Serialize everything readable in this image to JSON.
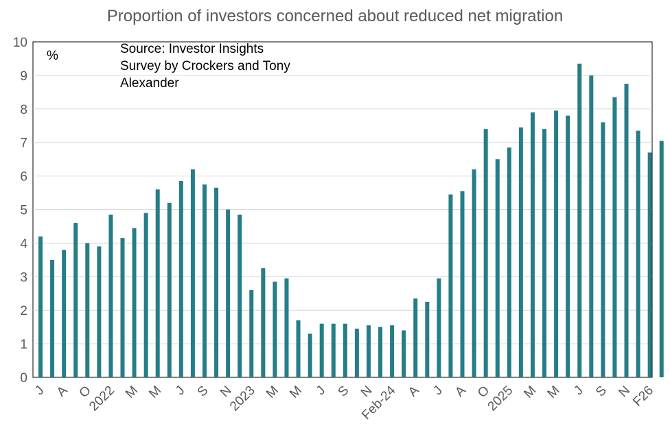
{
  "chart_data": {
    "type": "bar",
    "title": "Proportion of investors concerned about reduced net migration",
    "unit_label": "%",
    "source_lines": [
      "Source: Investor Insights",
      "Survey by Crockers and Tony",
      "Alexander"
    ],
    "ylim": [
      0,
      10
    ],
    "yticks": [
      0,
      1,
      2,
      3,
      4,
      5,
      6,
      7,
      8,
      9,
      10
    ],
    "grid": true,
    "legend": "none",
    "bar_color": "#257d87",
    "grid_color": "#d9d9d9",
    "x_tick_labels": [
      {
        "index": 0,
        "label": "J"
      },
      {
        "index": 2,
        "label": "A"
      },
      {
        "index": 4,
        "label": "O"
      },
      {
        "index": 6,
        "label": "2022"
      },
      {
        "index": 8,
        "label": "M"
      },
      {
        "index": 10,
        "label": "M"
      },
      {
        "index": 12,
        "label": "J"
      },
      {
        "index": 14,
        "label": "S"
      },
      {
        "index": 16,
        "label": "N"
      },
      {
        "index": 18,
        "label": "2023"
      },
      {
        "index": 20,
        "label": "M"
      },
      {
        "index": 22,
        "label": "M"
      },
      {
        "index": 24,
        "label": "J"
      },
      {
        "index": 26,
        "label": "S"
      },
      {
        "index": 28,
        "label": "N"
      },
      {
        "index": 30,
        "label": "Feb-24"
      },
      {
        "index": 32,
        "label": "A"
      },
      {
        "index": 34,
        "label": "J"
      },
      {
        "index": 36,
        "label": "A"
      },
      {
        "index": 38,
        "label": "O"
      },
      {
        "index": 40,
        "label": "2025"
      },
      {
        "index": 42,
        "label": "M"
      },
      {
        "index": 44,
        "label": "M"
      },
      {
        "index": 46,
        "label": "J"
      },
      {
        "index": 48,
        "label": "S"
      },
      {
        "index": 50,
        "label": "N"
      },
      {
        "index": 52,
        "label": "F26"
      }
    ],
    "values": [
      4.2,
      3.5,
      3.8,
      4.6,
      4.0,
      3.9,
      4.85,
      4.15,
      4.45,
      4.9,
      5.6,
      5.2,
      5.85,
      6.2,
      5.75,
      5.65,
      5.0,
      4.85,
      2.6,
      3.25,
      2.85,
      2.95,
      1.7,
      1.3,
      1.6,
      1.6,
      1.6,
      1.45,
      1.55,
      1.5,
      1.55,
      1.4,
      2.35,
      2.25,
      2.95,
      5.45,
      5.55,
      6.2,
      7.4,
      6.5,
      6.85,
      7.45,
      7.9,
      7.4,
      7.95,
      7.8,
      9.35,
      9.0,
      7.6,
      8.35,
      8.75,
      7.35,
      6.7,
      7.05
    ]
  }
}
